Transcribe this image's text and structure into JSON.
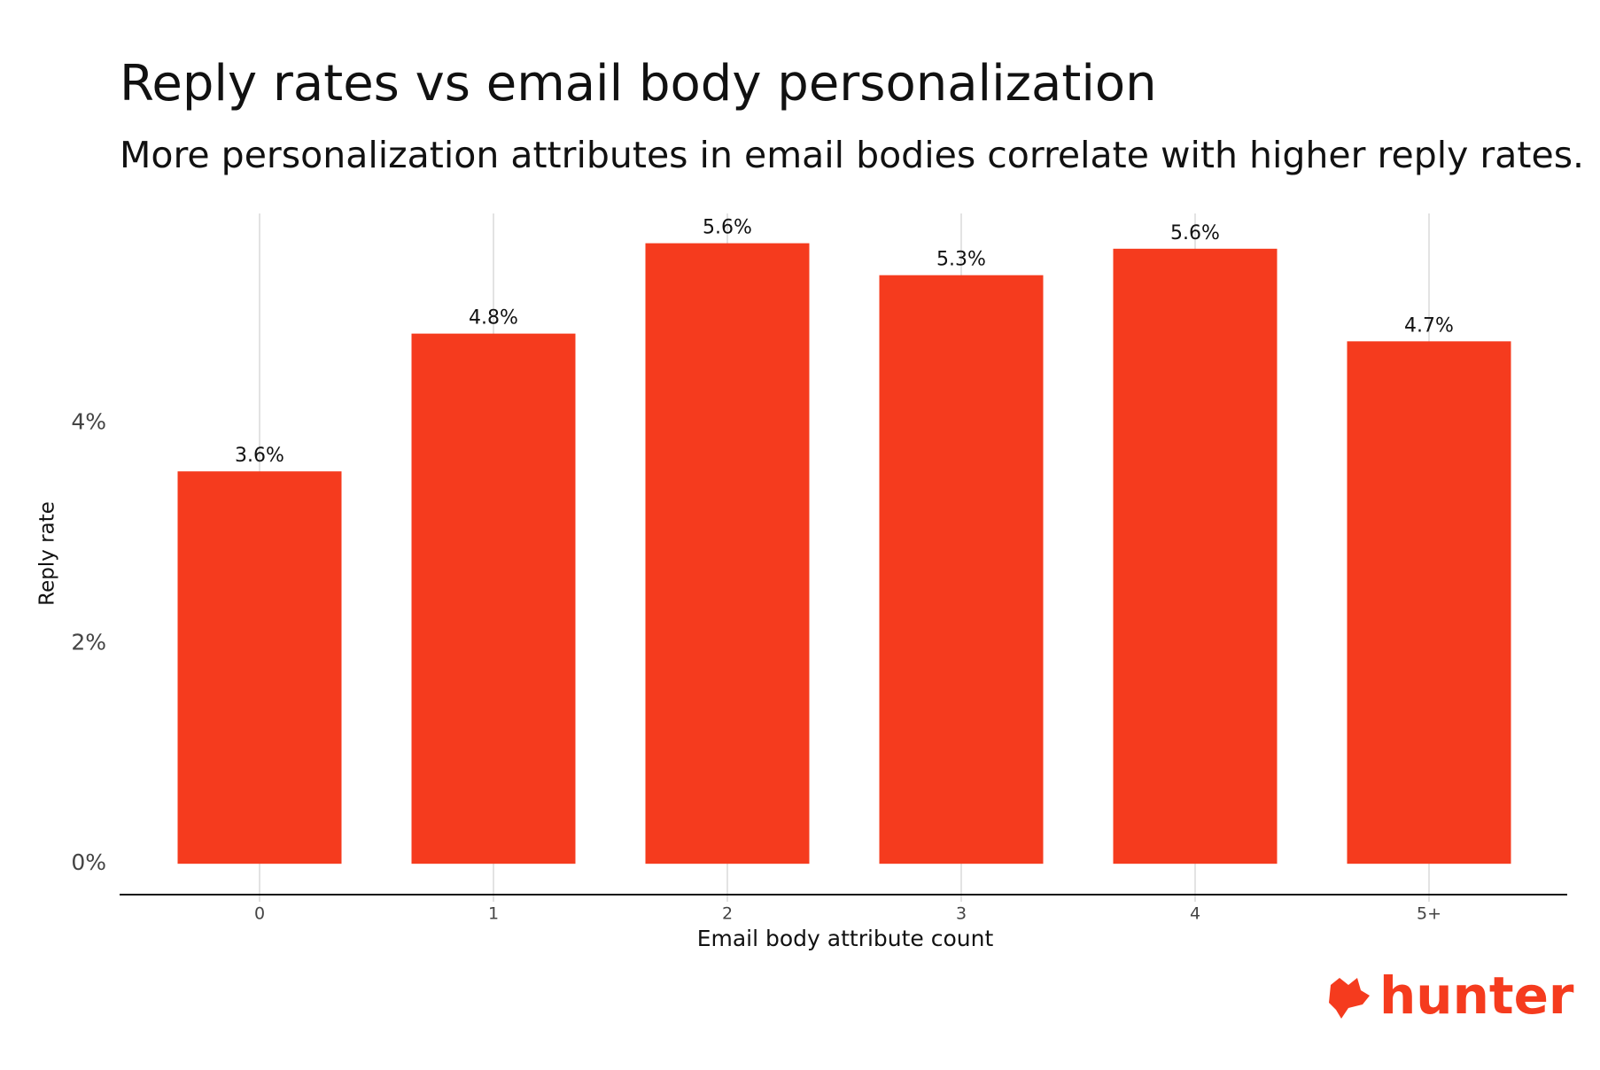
{
  "chart_data": {
    "type": "bar",
    "title": "Reply rates vs email body personalization",
    "subtitle": "More personalization attributes in email bodies correlate with higher reply rates.",
    "x_label": "Email body attribute count",
    "y_label": "Reply rate",
    "categories": [
      "0",
      "1",
      "2",
      "3",
      "4",
      "5+"
    ],
    "values": [
      3.56,
      4.81,
      5.63,
      5.34,
      5.58,
      4.74
    ],
    "value_labels": [
      "3.6%",
      "4.8%",
      "5.6%",
      "5.3%",
      "5.6%",
      "4.7%"
    ],
    "color": "#f53b1e",
    "ylim": [
      -0.28,
      5.9
    ],
    "yticks": [
      {
        "value": 0,
        "label": "0%"
      },
      {
        "value": 2,
        "label": "2%"
      },
      {
        "value": 4,
        "label": "4%"
      }
    ],
    "grid": "x"
  },
  "logo": "hunter"
}
